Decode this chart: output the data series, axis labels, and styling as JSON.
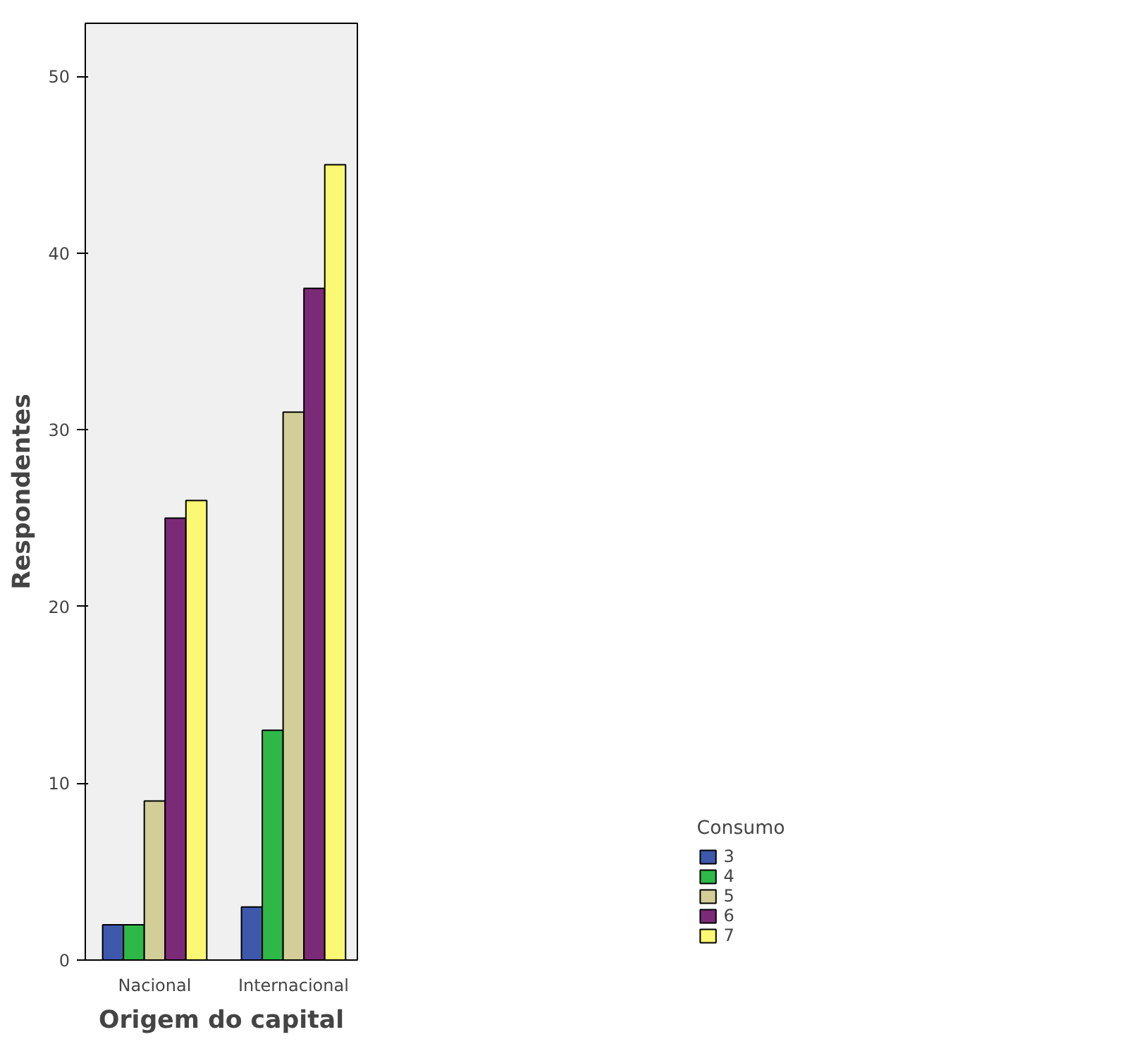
{
  "chart_data": {
    "type": "bar",
    "xlabel": "Origem do capital",
    "ylabel": "Respondentes",
    "legend_title": "Consumo",
    "categories": [
      "Nacional",
      "Internacional"
    ],
    "series": [
      {
        "name": "3",
        "color": "#3e58ac",
        "values": [
          2,
          3
        ]
      },
      {
        "name": "4",
        "color": "#2eb848",
        "values": [
          2,
          13
        ]
      },
      {
        "name": "5",
        "color": "#d3ce97",
        "values": [
          9,
          31
        ]
      },
      {
        "name": "6",
        "color": "#7b2a78",
        "values": [
          25,
          38
        ]
      },
      {
        "name": "7",
        "color": "#fbf873",
        "values": [
          26,
          45
        ]
      }
    ],
    "ylim": [
      0,
      53
    ],
    "yticks": [
      0,
      10,
      20,
      30,
      40,
      50
    ],
    "grid": false,
    "legend": "right"
  }
}
